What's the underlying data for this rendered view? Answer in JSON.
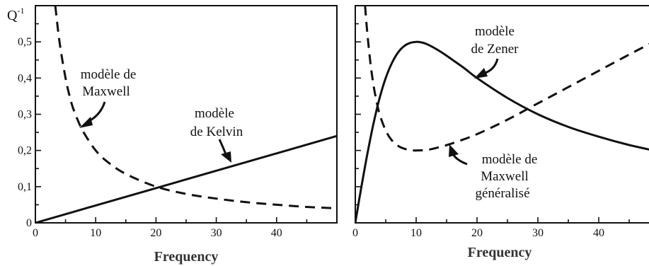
{
  "chart_data": [
    {
      "type": "line",
      "ylabel": "Q-1",
      "ylabel_base": "Q",
      "ylabel_sup": "-1",
      "xlabel": "Frequency",
      "xlim": [
        0,
        50
      ],
      "ylim": [
        0,
        0.6
      ],
      "x_ticks": [
        0,
        10,
        20,
        30,
        40
      ],
      "x_tick_labels": [
        "0",
        "10",
        "20",
        "30",
        "40"
      ],
      "y_ticks": [
        0,
        0.1,
        0.2,
        0.3,
        0.4,
        0.5
      ],
      "y_tick_labels": [
        "0",
        "0,1",
        "0,2",
        "0,3",
        "0,4",
        "0,5"
      ],
      "grid": false,
      "series": [
        {
          "style": "solid",
          "x": [
            0,
            10,
            20,
            30,
            40,
            50
          ],
          "y": [
            0,
            0.048,
            0.096,
            0.144,
            0.192,
            0.24
          ]
        },
        {
          "style": "dashed",
          "x": [
            3.3,
            4,
            5,
            6,
            7,
            8,
            10,
            12,
            15,
            20,
            25,
            30,
            35,
            40,
            45,
            50
          ],
          "y": [
            0.6,
            0.5,
            0.4,
            0.33,
            0.285,
            0.25,
            0.2,
            0.168,
            0.135,
            0.1,
            0.08,
            0.067,
            0.057,
            0.05,
            0.044,
            0.04
          ]
        }
      ],
      "annotations": [
        {
          "lines": [
            "modèle de",
            "Maxwell"
          ]
        },
        {
          "lines": [
            "modèle",
            "de Kelvin"
          ]
        }
      ]
    },
    {
      "type": "line",
      "xlabel": "Frequency",
      "xlim": [
        0,
        50
      ],
      "ylim": [
        0,
        0.6
      ],
      "x_ticks": [
        0,
        10,
        20,
        30,
        40
      ],
      "x_tick_labels": [
        "0",
        "10",
        "20",
        "30",
        "40"
      ],
      "y_ticks": [
        0,
        0.1,
        0.2,
        0.3,
        0.4,
        0.5
      ],
      "grid": false,
      "series": [
        {
          "style": "solid",
          "x": [
            0,
            1,
            2,
            3,
            4,
            5,
            6,
            7,
            8,
            9,
            10,
            11,
            12,
            14,
            16,
            18,
            20,
            25,
            30,
            35,
            40,
            45,
            49
          ],
          "y": [
            0,
            0.099,
            0.192,
            0.275,
            0.345,
            0.4,
            0.441,
            0.47,
            0.488,
            0.497,
            0.5,
            0.498,
            0.492,
            0.473,
            0.45,
            0.426,
            0.4,
            0.345,
            0.3,
            0.265,
            0.238,
            0.215,
            0.2
          ]
        },
        {
          "style": "dashed",
          "x": [
            1.6,
            2,
            2.5,
            3,
            3.5,
            4,
            5,
            6,
            7,
            8,
            9,
            10,
            12,
            14,
            16,
            20,
            25,
            30,
            35,
            40,
            45,
            49
          ],
          "y": [
            0.6,
            0.52,
            0.44,
            0.38,
            0.335,
            0.3,
            0.255,
            0.228,
            0.213,
            0.205,
            0.201,
            0.2,
            0.202,
            0.21,
            0.22,
            0.245,
            0.285,
            0.33,
            0.375,
            0.42,
            0.465,
            0.5
          ]
        }
      ],
      "annotations": [
        {
          "lines": [
            "modèle",
            "de Zener"
          ]
        },
        {
          "lines": [
            "modèle de",
            "Maxwell",
            "généralisé"
          ]
        }
      ]
    }
  ]
}
